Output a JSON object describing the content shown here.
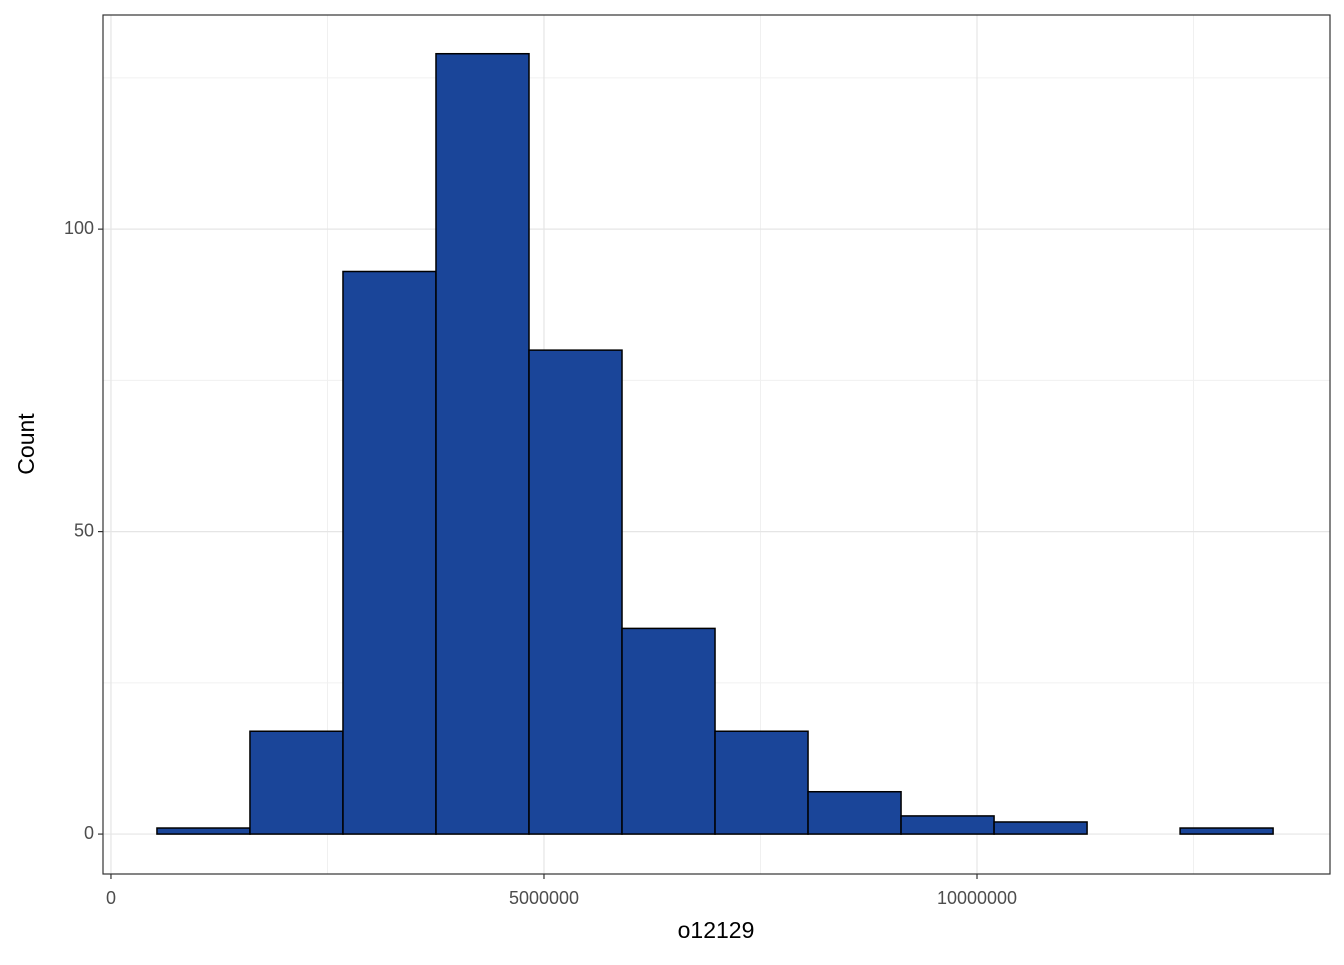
{
  "chart_data": {
    "type": "histogram",
    "x_label": "o12129",
    "y_label": "Count",
    "bins": [
      531000,
      1605000,
      2679000,
      3753000,
      4827000,
      5901000,
      6975000,
      8049000,
      9123000,
      10197000,
      11271000,
      12345000,
      13419000
    ],
    "counts": [
      1,
      17,
      93,
      129,
      80,
      34,
      17,
      7,
      3,
      2,
      0,
      1
    ],
    "color": "#1a4599",
    "xlim": [
      -92000,
      14076000
    ],
    "xticks": [
      0,
      5000000,
      10000000
    ],
    "x_minor_ticks": [
      2500000,
      7500000,
      12500000
    ],
    "ylim": [
      -6.6,
      135.4
    ],
    "yticks": [
      0,
      50,
      100
    ],
    "y_minor_ticks": [
      25,
      75,
      125
    ],
    "grid": true
  }
}
